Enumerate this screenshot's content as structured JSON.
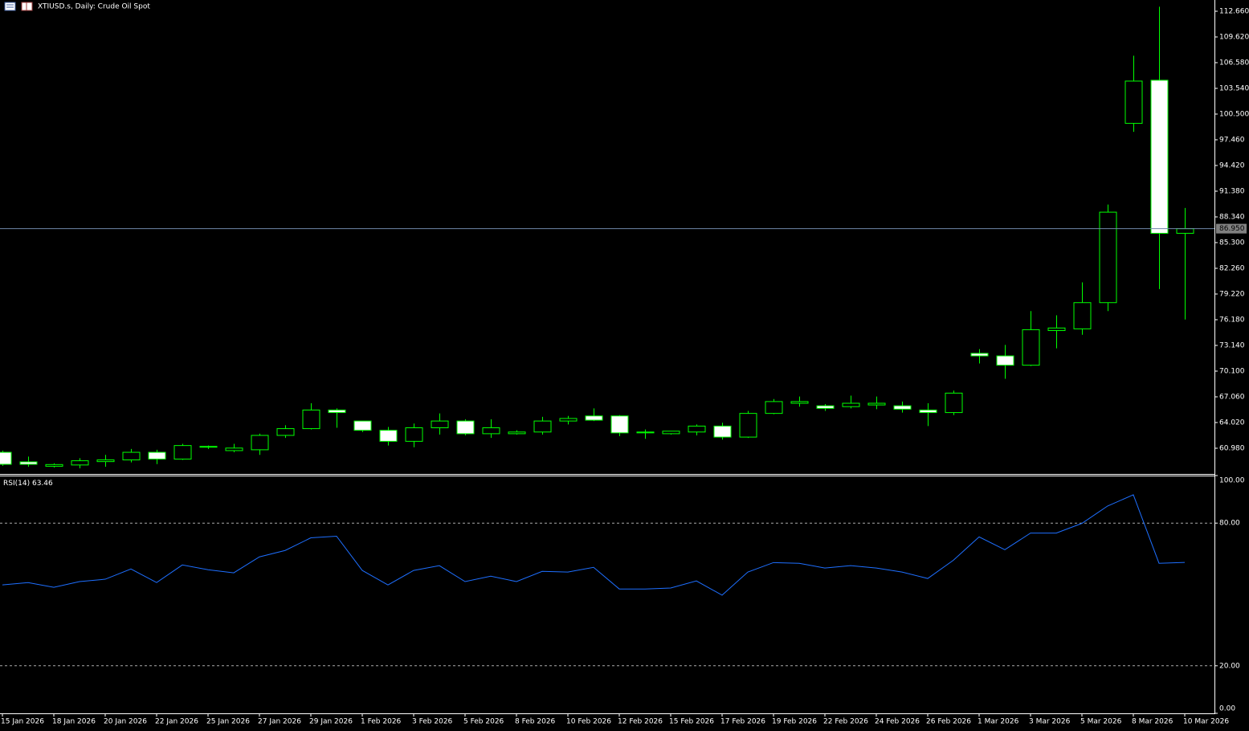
{
  "chart_data": [
    {
      "type": "candlestick",
      "title": "XTIUSD.s, Daily:  Crude Oil Spot",
      "categories": [
        "15 Jan 2026",
        null,
        "18 Jan 2026",
        null,
        "20 Jan 2026",
        null,
        "22 Jan 2026",
        null,
        "25 Jan 2026",
        null,
        "27 Jan 2026",
        null,
        "29 Jan 2026",
        null,
        "1 Feb 2026",
        null,
        "3 Feb 2026",
        null,
        "5 Feb 2026",
        null,
        "8 Feb 2026",
        null,
        "10 Feb 2026",
        null,
        "12 Feb 2026",
        null,
        "15 Feb 2026",
        null,
        "17 Feb 2026",
        null,
        "19 Feb 2026",
        null,
        "22 Feb 2026",
        null,
        "24 Feb 2026",
        null,
        "26 Feb 2026",
        null,
        "1 Mar 2026",
        null,
        "3 Mar 2026",
        null,
        "5 Mar 2026",
        null,
        "8 Mar 2026",
        null,
        "10 Mar 2026"
      ],
      "open": [
        60.5,
        59.37,
        58.85,
        59.0,
        59.4,
        59.6,
        60.5,
        59.7,
        61.1,
        60.7,
        60.8,
        62.5,
        63.3,
        65.5,
        64.2,
        63.1,
        61.8,
        63.4,
        64.2,
        62.7,
        62.7,
        62.9,
        64.2,
        64.8,
        64.8,
        62.8,
        62.7,
        62.9,
        63.6,
        62.3,
        65.1,
        66.3,
        66.0,
        65.9,
        66.1,
        66.0,
        65.5,
        65.2,
        72.2,
        71.9,
        70.8,
        74.9,
        75.1,
        78.2,
        99.4,
        104.5,
        86.4
      ],
      "high": [
        60.7,
        60.0,
        59.2,
        59.8,
        60.2,
        60.9,
        60.8,
        61.5,
        61.3,
        61.5,
        62.7,
        63.7,
        66.3,
        65.7,
        64.2,
        63.5,
        63.9,
        65.1,
        64.4,
        64.4,
        63.1,
        64.7,
        64.8,
        65.7,
        64.9,
        63.2,
        63.0,
        63.8,
        64.0,
        65.4,
        66.8,
        67.1,
        66.2,
        67.2,
        67.1,
        66.5,
        66.3,
        67.8,
        72.7,
        73.2,
        77.2,
        76.7,
        80.6,
        89.8,
        107.4,
        113.2,
        89.4
      ],
      "low": [
        58.9,
        58.8,
        58.7,
        58.6,
        58.8,
        59.3,
        59.1,
        59.6,
        60.9,
        60.5,
        60.2,
        62.2,
        63.2,
        63.4,
        62.9,
        61.3,
        61.1,
        62.6,
        62.5,
        62.2,
        62.6,
        62.6,
        63.8,
        64.2,
        62.4,
        62.1,
        62.6,
        62.5,
        62.0,
        62.2,
        65.0,
        65.9,
        65.4,
        65.7,
        65.6,
        65.2,
        63.6,
        64.9,
        71.0,
        69.2,
        70.7,
        72.8,
        74.4,
        77.2,
        98.4,
        79.8,
        76.2
      ],
      "close": [
        59.08,
        59.08,
        59.05,
        59.5,
        59.6,
        60.5,
        59.7,
        61.3,
        61.2,
        61.0,
        62.5,
        63.3,
        65.5,
        65.2,
        63.1,
        61.8,
        63.4,
        64.2,
        62.7,
        63.4,
        62.9,
        64.2,
        64.5,
        64.3,
        62.8,
        62.9,
        63.0,
        63.6,
        62.3,
        65.1,
        66.5,
        66.5,
        65.7,
        66.3,
        66.3,
        65.6,
        65.2,
        67.5,
        71.9,
        70.8,
        75.0,
        75.2,
        78.2,
        88.9,
        104.4,
        86.4,
        86.95
      ],
      "color": "#00ff00",
      "up_fill": "#000000",
      "down_fill": "#ffffff",
      "ylim": [
        57.94,
        113.99
      ],
      "yticks": [
        {
          "value": 60.98,
          "label": "60.980"
        },
        {
          "value": 64.02,
          "label": "64.020"
        },
        {
          "value": 67.06,
          "label": "67.060"
        },
        {
          "value": 70.1,
          "label": "70.100"
        },
        {
          "value": 73.14,
          "label": "73.140"
        },
        {
          "value": 76.18,
          "label": "76.180"
        },
        {
          "value": 79.22,
          "label": "79.220"
        },
        {
          "value": 82.26,
          "label": "82.260"
        },
        {
          "value": 85.3,
          "label": "85.300"
        },
        {
          "value": 88.34,
          "label": "88.340"
        },
        {
          "value": 91.38,
          "label": "91.380"
        },
        {
          "value": 94.42,
          "label": "94.420"
        },
        {
          "value": 97.46,
          "label": "97.460"
        },
        {
          "value": 100.5,
          "label": "100.500"
        },
        {
          "value": 103.54,
          "label": "103.540"
        },
        {
          "value": 106.58,
          "label": "106.580"
        },
        {
          "value": 109.62,
          "label": "109.620"
        },
        {
          "value": 112.66,
          "label": "112.660"
        }
      ],
      "last_price": {
        "value": 86.95,
        "label": "86.950"
      },
      "last_price_color": "#6f87a8"
    },
    {
      "type": "line",
      "series": [
        {
          "name": "RSI(14)",
          "color": "#1e6fff",
          "values": [
            54.0,
            55.0,
            53.0,
            55.4,
            56.4,
            60.7,
            55.0,
            62.4,
            60.4,
            59.1,
            65.8,
            68.5,
            73.8,
            74.5,
            60.1,
            54.0,
            60.1,
            62.1,
            55.4,
            57.7,
            55.4,
            59.7,
            59.4,
            61.4,
            52.3,
            52.3,
            52.7,
            55.7,
            49.7,
            59.4,
            63.4,
            63.1,
            61.1,
            62.1,
            61.1,
            59.4,
            56.7,
            64.4,
            74.2,
            68.8,
            75.8,
            75.8,
            79.9,
            87.2,
            91.9,
            63.1,
            63.46
          ]
        }
      ],
      "ylim": [
        0,
        100
      ],
      "yticks": [
        {
          "value": 0,
          "label": "0.00"
        },
        {
          "value": 20,
          "label": "20.00"
        },
        {
          "value": 80,
          "label": "80.00"
        },
        {
          "value": 100,
          "label": "100.00"
        }
      ]
    }
  ]
}
